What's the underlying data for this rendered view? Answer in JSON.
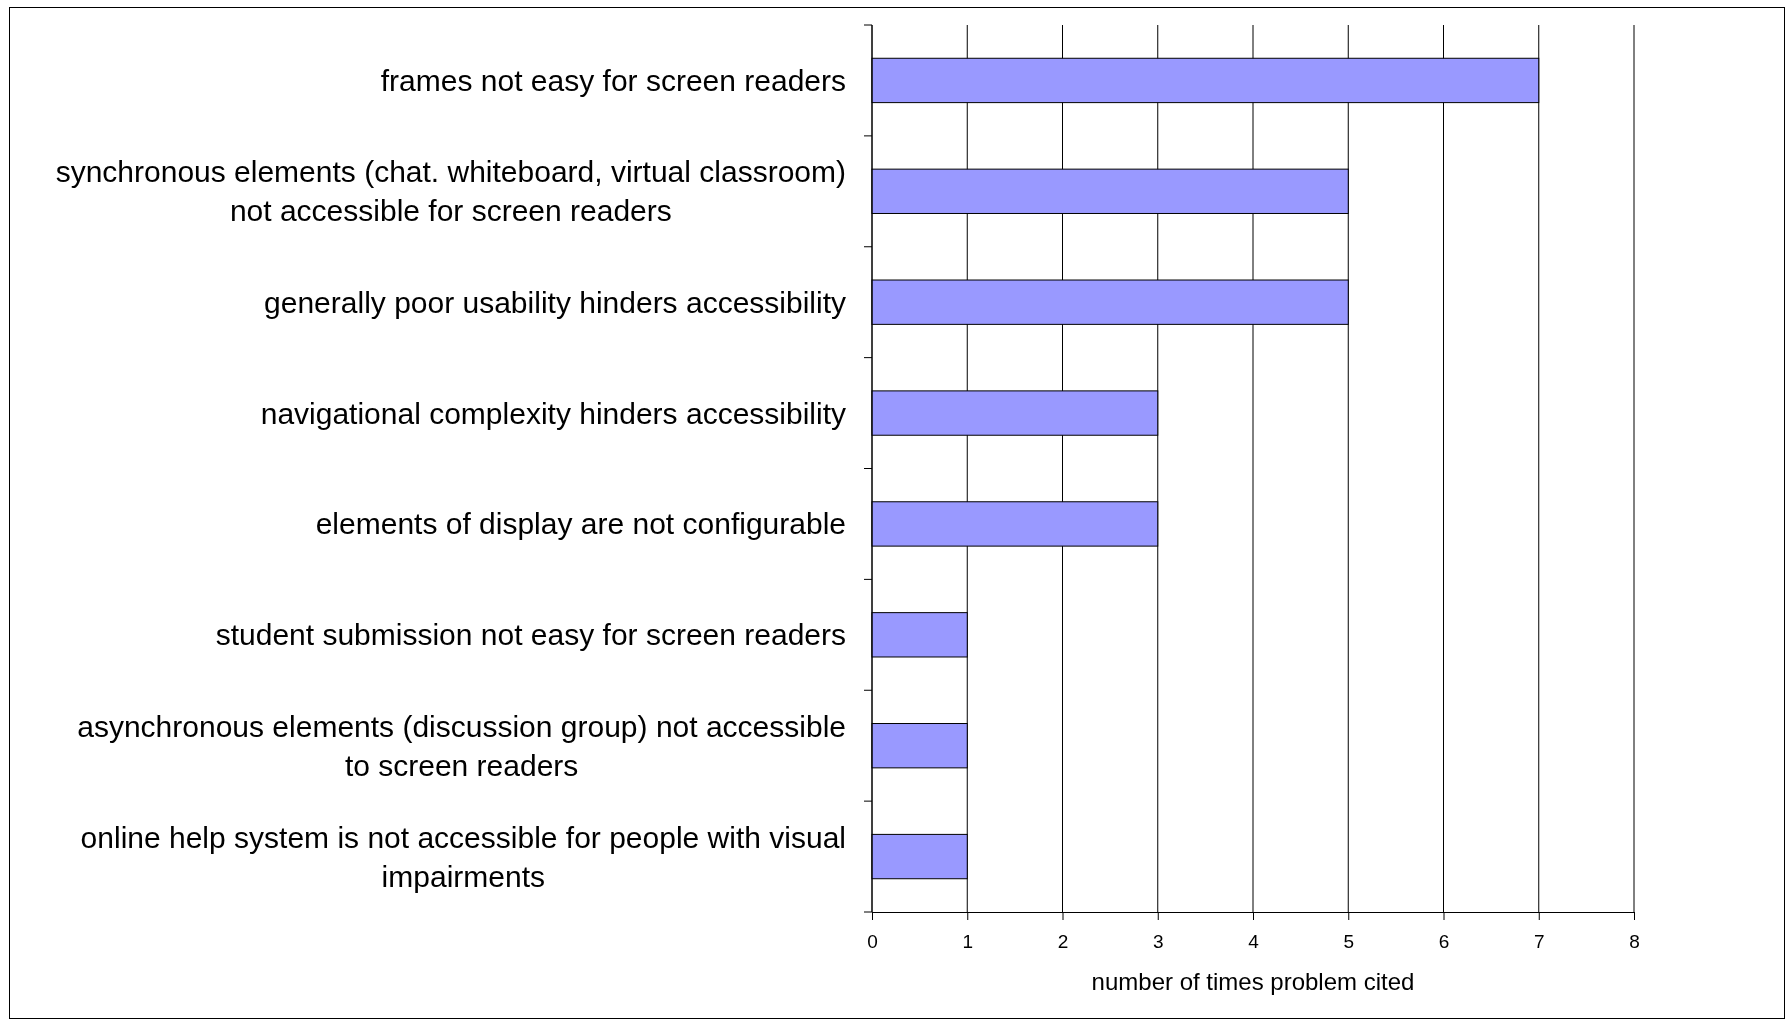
{
  "chart_data": {
    "type": "bar",
    "orientation": "horizontal",
    "xlabel": "number of times problem cited",
    "categories": [
      "frames not easy for screen readers",
      "synchronous elements (chat. whiteboard, virtual classroom) not accessible for screen readers",
      "generally poor usability hinders accessibility",
      "navigational complexity hinders accessibility",
      "elements of display are not configurable",
      "student submission not easy for screen readers",
      "asynchronous elements (discussion group) not accessible to screen readers",
      "online help system is not accessible for people with visual impairments"
    ],
    "values": [
      7,
      5,
      5,
      3,
      3,
      1,
      1,
      1
    ],
    "color": "#9999ff",
    "xlim": [
      0,
      8
    ],
    "xticks": [
      0,
      1,
      2,
      3,
      4,
      5,
      6,
      7,
      8
    ],
    "grid": "x"
  }
}
